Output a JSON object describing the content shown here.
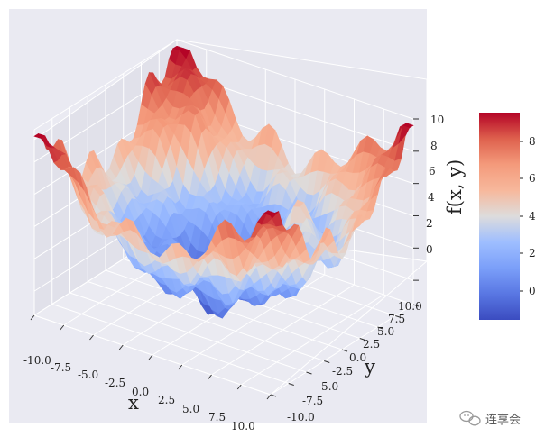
{
  "chart_data": {
    "type": "surface3d",
    "function": "f(x, y)",
    "xlabel": "x",
    "ylabel": "y",
    "zlabel": "f(x, y)",
    "xlim": [
      -10,
      10
    ],
    "ylim": [
      -10,
      10
    ],
    "zlim": [
      -1.5,
      10
    ],
    "x_ticks": [
      "-10.0",
      "-7.5",
      "-5.0",
      "-2.5",
      "0.0",
      "2.5",
      "5.0",
      "7.5",
      "10.0"
    ],
    "y_ticks": [
      "-10.0",
      "-7.5",
      "-5.0",
      "-2.5",
      "0.0",
      "2.5",
      "5.0",
      "7.5",
      "10.0"
    ],
    "z_ticks": [
      "0",
      "2",
      "4",
      "6",
      "8",
      "10"
    ],
    "colormap": "coolwarm",
    "colorbar": {
      "range": [
        -1.3,
        9.5
      ],
      "ticks": [
        "0",
        "2",
        "4",
        "6",
        "8"
      ]
    },
    "grid": true,
    "background": "#eaeaf2"
  },
  "watermark": {
    "text": "连享会",
    "icon": "wechat-icon"
  },
  "colors": {
    "pane_back": "#e6e6ee",
    "pane_left": "#e1e1ea",
    "pane_floor": "#ebebf2",
    "grid_line": "#ffffff",
    "panel_bg": "#eaeaf2"
  }
}
